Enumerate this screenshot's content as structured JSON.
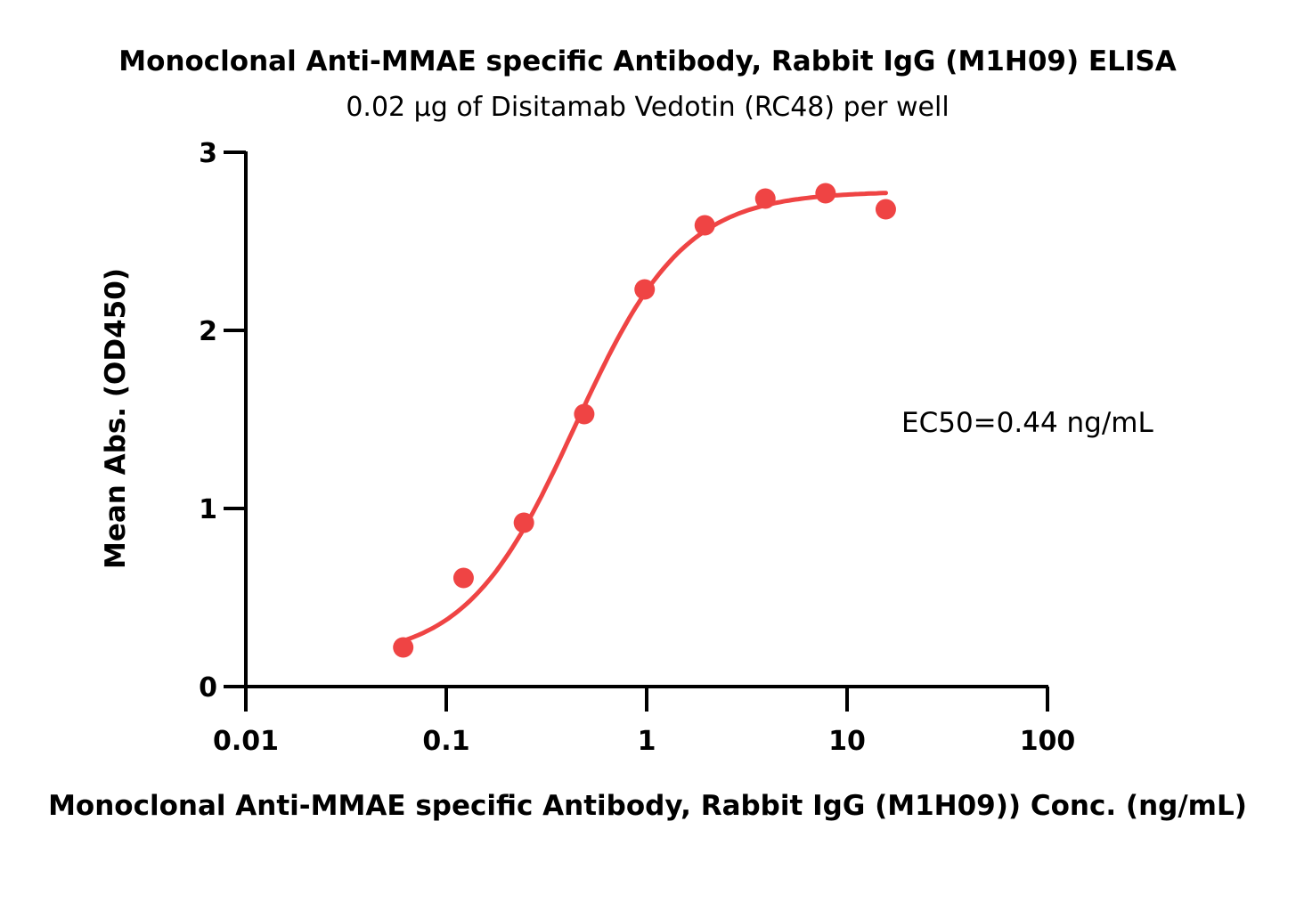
{
  "chart_data": {
    "type": "scatter",
    "title": "Monoclonal Anti-MMAE specific Antibody, Rabbit IgG (M1H09) ELISA",
    "subtitle": "0.02 µg of Disitamab Vedotin (RC48) per well",
    "xlabel": "Monoclonal Anti-MMAE specific Antibody, Rabbit IgG (M1H09)) Conc. (ng/mL)",
    "ylabel": "Mean Abs. (OD450)",
    "x_scale": "log",
    "xlim": [
      0.01,
      100
    ],
    "ylim": [
      0,
      3
    ],
    "x_ticks": [
      "0.01",
      "0.1",
      "1",
      "10",
      "100"
    ],
    "y_ticks": [
      "0",
      "1",
      "2",
      "3"
    ],
    "grid": false,
    "color": "#ef4444",
    "annotation": "EC50=0.44 ng/mL",
    "series": [
      {
        "x": [
          0.061,
          0.122,
          0.244,
          0.488,
          0.977,
          1.95,
          3.91,
          7.81,
          15.6
        ],
        "y": [
          0.22,
          0.61,
          0.92,
          1.53,
          2.23,
          2.59,
          2.74,
          2.77,
          2.68
        ],
        "fit": {
          "model": "4PL",
          "bottom": 0.15,
          "top": 2.78,
          "ec50": 0.44,
          "hill": 1.6,
          "x_range": [
            0.061,
            15.6
          ]
        }
      }
    ]
  }
}
